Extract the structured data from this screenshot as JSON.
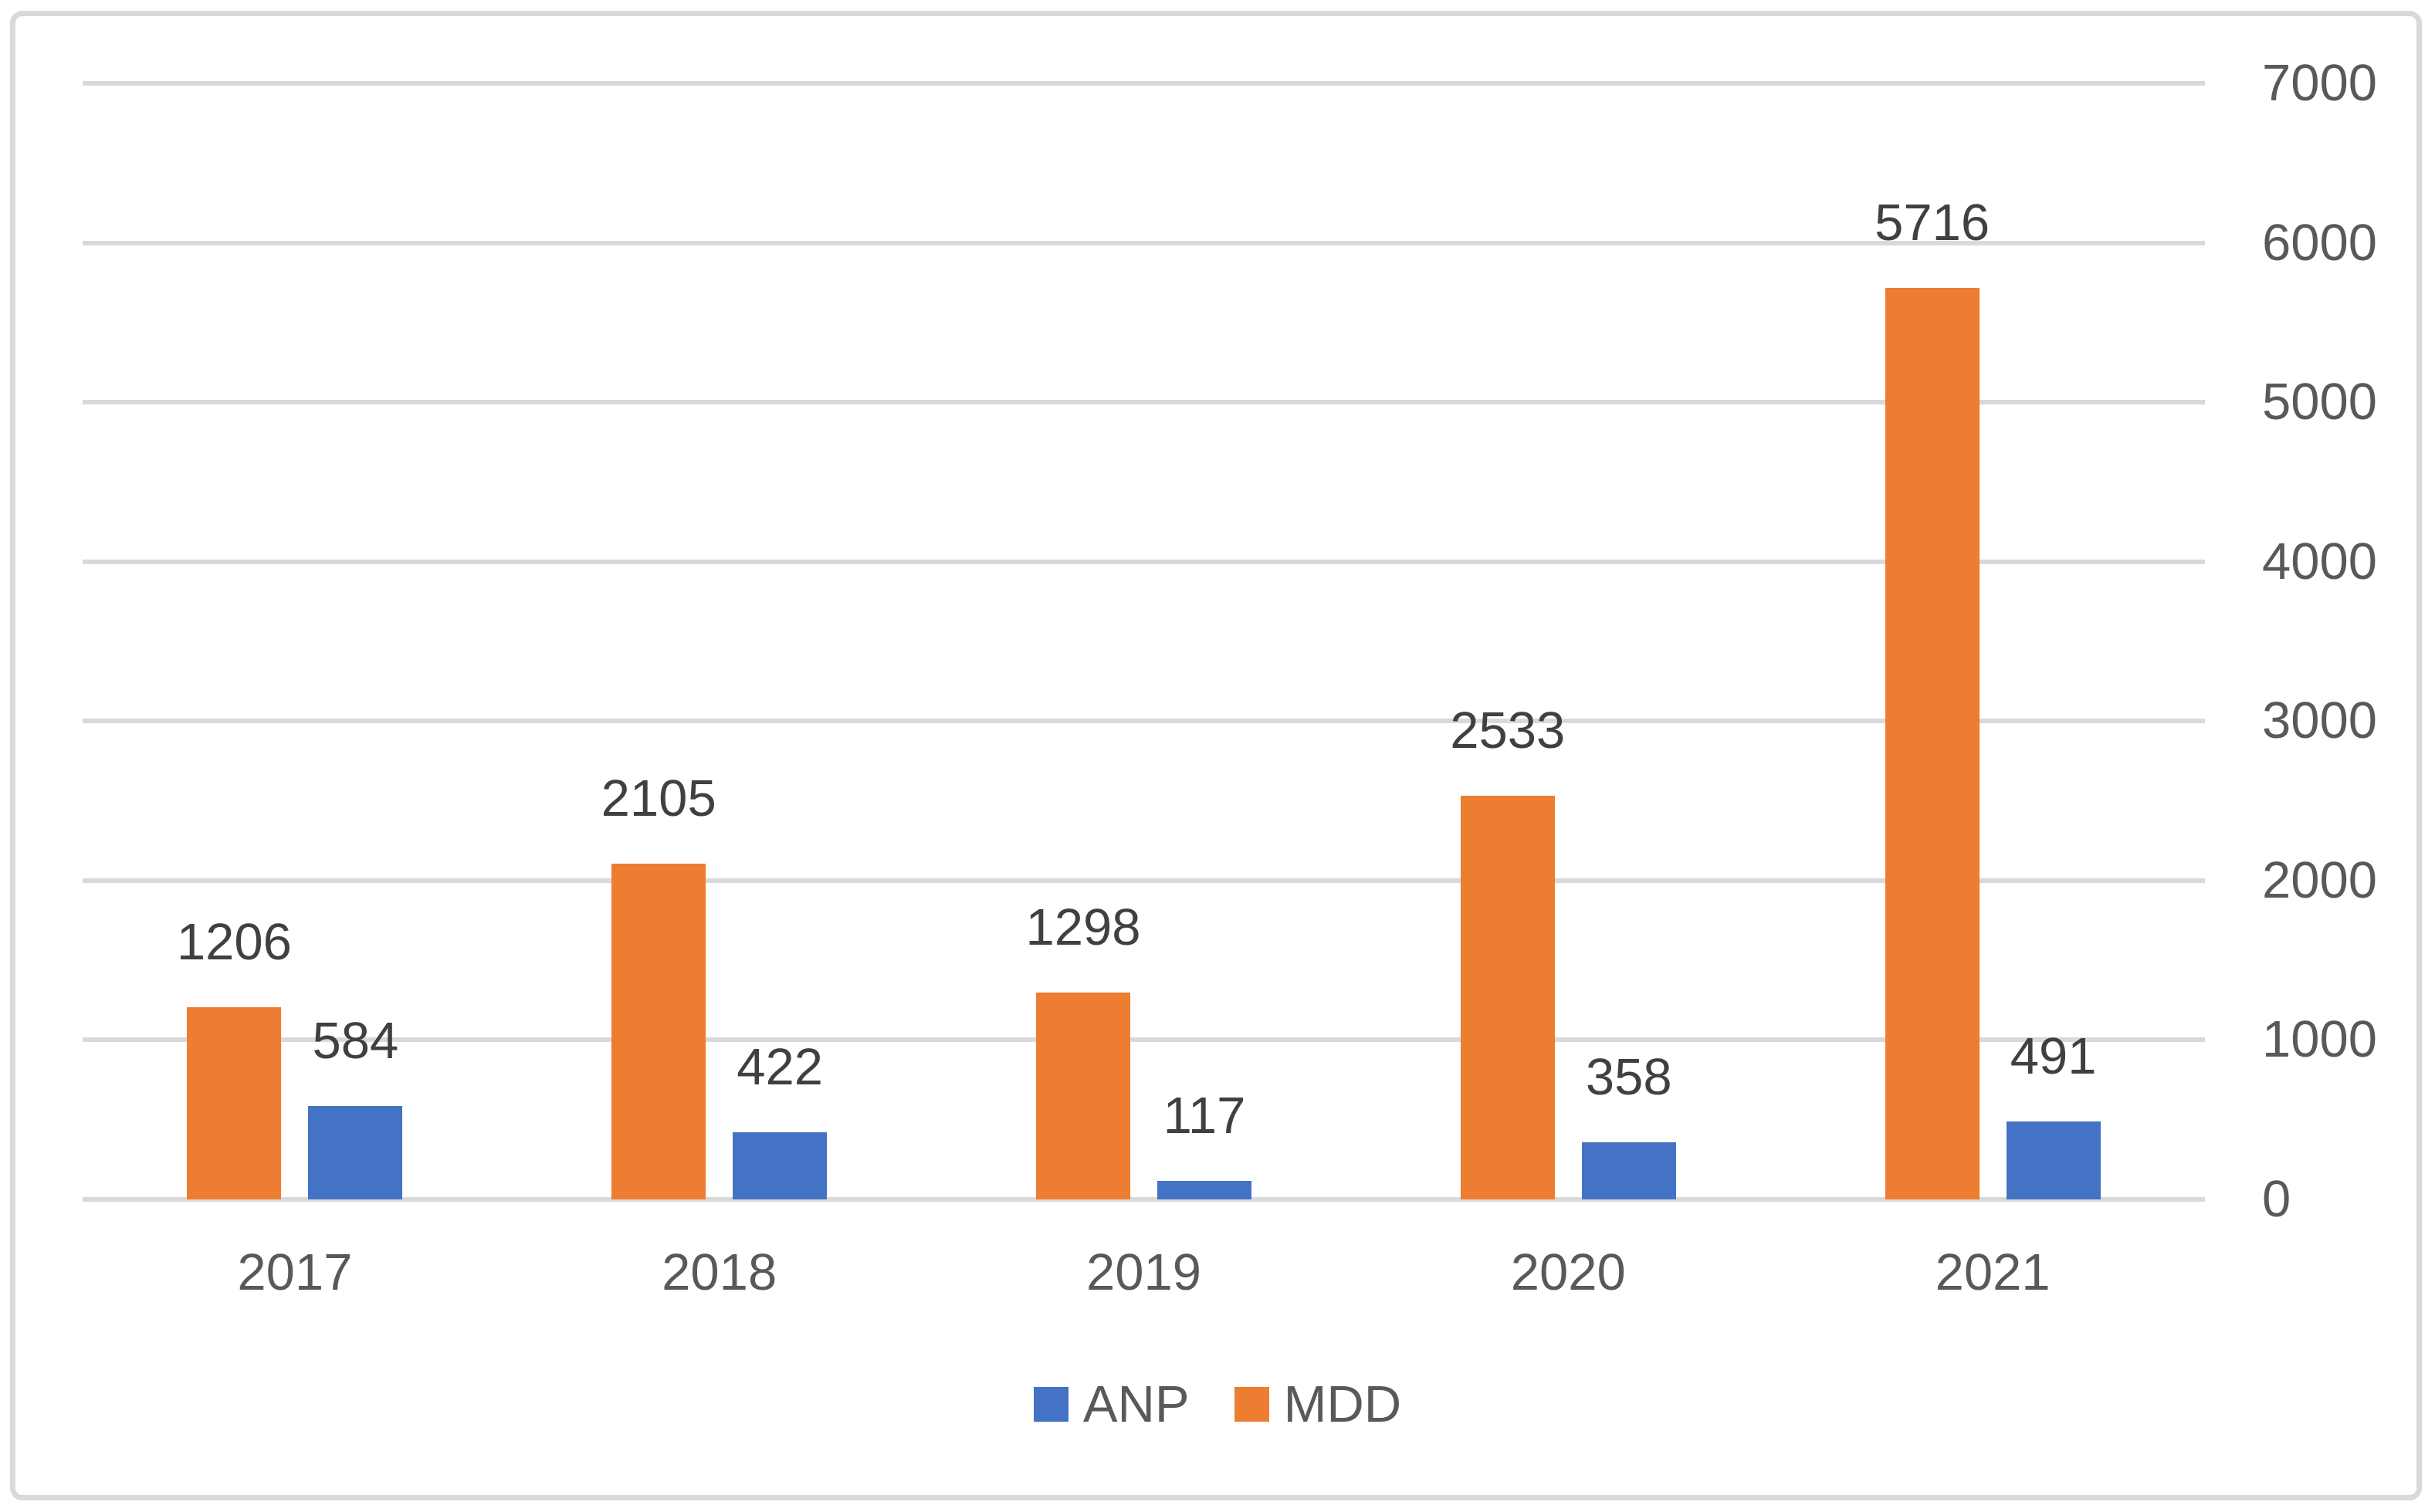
{
  "chart_data": {
    "type": "bar",
    "title": "",
    "xlabel": "",
    "ylabel": "",
    "categories": [
      "2017",
      "2018",
      "2019",
      "2020",
      "2021"
    ],
    "series": [
      {
        "name": "ANP",
        "color": "#4472C4",
        "values": [
          584,
          422,
          117,
          358,
          491
        ]
      },
      {
        "name": "MDD",
        "color": "#ED7D31",
        "values": [
          1206,
          2105,
          1298,
          2533,
          5716
        ]
      }
    ],
    "bar_plot_order": [
      "MDD",
      "ANP"
    ],
    "data_labels_visible": true,
    "ylim": [
      0,
      7000
    ],
    "yticks": [
      0,
      1000,
      2000,
      3000,
      4000,
      5000,
      6000,
      7000
    ],
    "y_axis_side": "right",
    "grid": true,
    "legend_position": "bottom"
  },
  "legend": {
    "items": [
      {
        "label": "ANP",
        "color": "#4472C4"
      },
      {
        "label": "MDD",
        "color": "#ED7D31"
      }
    ]
  },
  "colors": {
    "background": "#FFFFFF",
    "frame_border": "#D9D9D9",
    "gridline": "#D9D9D9",
    "axis_tick_label": "#595959",
    "category_label": "#595959",
    "data_label": "#404040"
  }
}
